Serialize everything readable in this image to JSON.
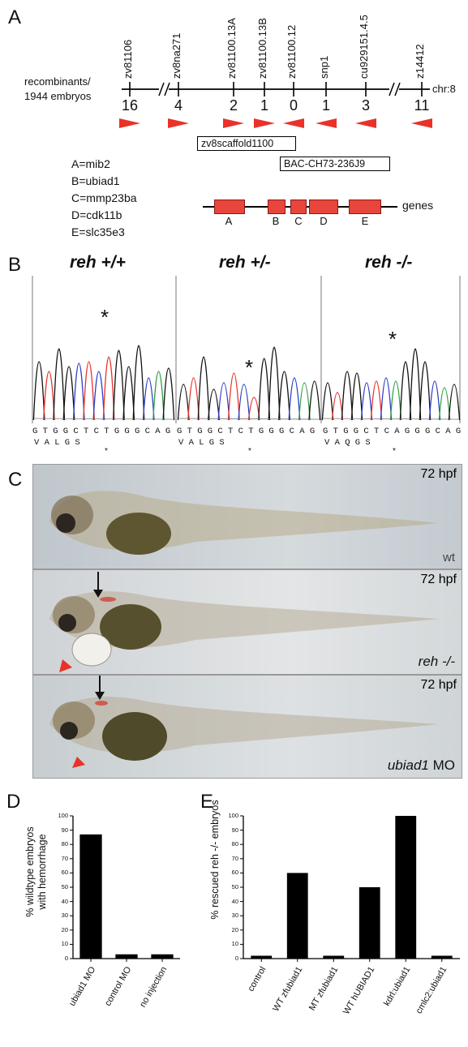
{
  "panels": {
    "a": "A",
    "b": "B",
    "c": "C",
    "d": "D",
    "e": "E"
  },
  "map": {
    "markers": [
      "zv81106",
      "zv8na271",
      "zv81100.13A",
      "zv81100.13B",
      "zv81100.12",
      "snp1",
      "cu929151.4.5",
      "z14412"
    ],
    "counts": [
      "16",
      "4",
      "2",
      "1",
      "0",
      "1",
      "3",
      "11"
    ],
    "left_label_1": "recombinants/",
    "left_label_2": "1944 embryos",
    "chr_label": "chr:8",
    "scaffold_label": "zv8scaffold1100",
    "bac_label": "BAC-CH73-236J9",
    "genes_label": "genes",
    "gene_letters": [
      "A",
      "B",
      "C",
      "D",
      "E"
    ],
    "legend": [
      "A=mib2",
      "B=ubiad1",
      "C=mmp23ba",
      "D=cdk11b",
      "E=slc35e3"
    ],
    "arrow_color": "#e8322a"
  },
  "sequencing": {
    "genotypes": [
      "reh +/+",
      "reh +/-",
      "reh -/-"
    ],
    "seq_wt": "G T G G C T C T G G G C A G",
    "aa_wt": "V      A       L       G      S",
    "seq_het": "G T G G C T C T G G G C A G",
    "aa_het": "V      A       L       G      S",
    "seq_mut": "G T G G C T C A G G G C A G",
    "aa_mut": "V      A       Q       G      S",
    "star": "*",
    "sub_star": "*"
  },
  "embryos": {
    "stage": "72 hpf",
    "labels": [
      "wt",
      "reh -/-",
      "ubiad1 MO"
    ],
    "label_mut_italic": "reh -/-",
    "label_mo_italic": "ubiad1",
    "label_mo_rest": " MO"
  },
  "chart_data": [
    {
      "type": "bar",
      "ylabel_1": "% wildtype embryos",
      "ylabel_2": "with hemorrhage",
      "categories": [
        "ubiad1 MO",
        "control  MO",
        "no injection"
      ],
      "values": [
        87,
        3,
        3
      ],
      "ylim": [
        0,
        100
      ],
      "yticks": [
        "0",
        "10",
        "20",
        "30",
        "40",
        "50",
        "60",
        "70",
        "80",
        "90",
        "100"
      ],
      "bar_color": "#000000"
    },
    {
      "type": "bar",
      "ylabel": "% rescued reh -/- embryos",
      "categories": [
        "control",
        "WT zfubiad1",
        "MT zfubiad1",
        "WT hUBIAD1",
        "kdrl:ubiad1",
        "cmlc2:ubiad1"
      ],
      "values": [
        2,
        60,
        2,
        50,
        100,
        2
      ],
      "ylim": [
        0,
        100
      ],
      "yticks": [
        "0",
        "10",
        "20",
        "30",
        "40",
        "50",
        "60",
        "70",
        "80",
        "90",
        "100"
      ],
      "bar_color": "#000000"
    }
  ]
}
